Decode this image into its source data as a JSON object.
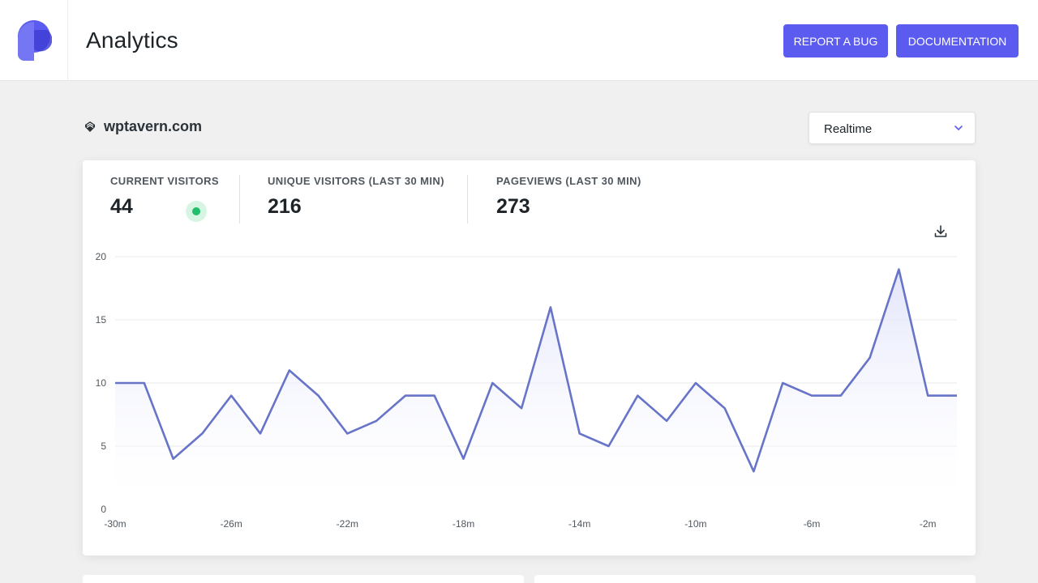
{
  "header": {
    "title": "Analytics",
    "buttons": {
      "report_bug": "REPORT A BUG",
      "documentation": "DOCUMENTATION"
    },
    "logo": "plausible-logo-icon",
    "accent": "#5b5bef"
  },
  "site": {
    "name": "wptavern.com",
    "icon": "wptavern-favicon-icon"
  },
  "period_select": {
    "value": "Realtime"
  },
  "stats": [
    {
      "label": "CURRENT VISITORS",
      "value": "44",
      "live": true
    },
    {
      "label": "UNIQUE VISITORS (LAST 30 MIN)",
      "value": "216"
    },
    {
      "label": "PAGEVIEWS (LAST 30 MIN)",
      "value": "273"
    }
  ],
  "chart_data": {
    "type": "area",
    "x": [
      -30,
      -29,
      -28,
      -27,
      -26,
      -25,
      -24,
      -23,
      -22,
      -21,
      -20,
      -19,
      -18,
      -17,
      -16,
      -15,
      -14,
      -13,
      -12,
      -11,
      -10,
      -9,
      -8,
      -7,
      -6,
      -5,
      -4,
      -3,
      -2,
      -1
    ],
    "values": [
      10,
      10,
      4,
      6,
      9,
      6,
      11,
      9,
      6,
      7,
      9,
      9,
      4,
      10,
      8,
      16,
      6,
      5,
      9,
      7,
      10,
      8,
      3,
      10,
      9,
      9,
      12,
      19,
      9,
      9
    ],
    "x_tick_labels": [
      "-30m",
      "-26m",
      "-22m",
      "-18m",
      "-14m",
      "-10m",
      "-6m",
      "-2m"
    ],
    "x_tick_values": [
      -30,
      -26,
      -22,
      -18,
      -14,
      -10,
      -6,
      -2
    ],
    "y_ticks": [
      0,
      5,
      10,
      15,
      20
    ],
    "ylim": [
      0,
      20
    ],
    "xlim": [
      -30,
      -1
    ],
    "grid": true,
    "line_color": "#6774c8",
    "fill_color": "#e6e8fb"
  }
}
